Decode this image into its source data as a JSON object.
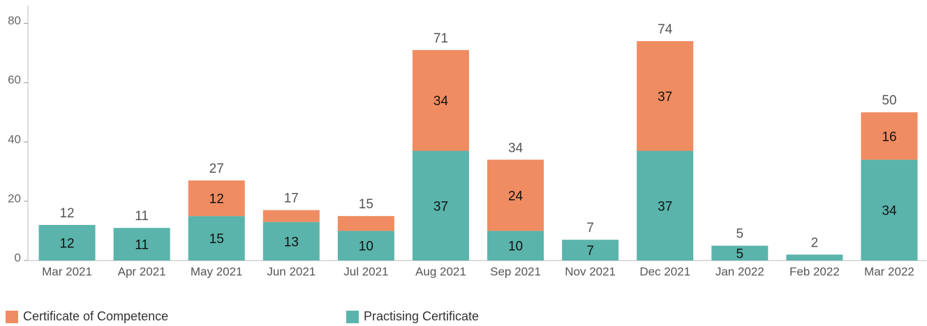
{
  "chart_data": {
    "type": "stacked_bar",
    "categories": [
      "Mar 2021",
      "Apr 2021",
      "May 2021",
      "Jun 2021",
      "Jul 2021",
      "Aug 2021",
      "Sep 2021",
      "Nov 2021",
      "Dec 2021",
      "Jan 2022",
      "Feb 2022",
      "Mar 2022"
    ],
    "series": [
      {
        "name": "Certificate of Competence",
        "color": "#f08c62",
        "values": [
          null,
          null,
          12,
          4,
          5,
          34,
          24,
          null,
          37,
          null,
          null,
          16
        ],
        "value_labels": [
          null,
          null,
          "12",
          null,
          null,
          "34",
          "24",
          null,
          "37",
          null,
          null,
          "16"
        ]
      },
      {
        "name": "Practising Certificate",
        "color": "#5ab4ab",
        "values": [
          12,
          11,
          15,
          13,
          10,
          37,
          10,
          7,
          37,
          5,
          2,
          34
        ],
        "value_labels": [
          "12",
          "11",
          "15",
          "13",
          "10",
          "37",
          "10",
          "7",
          "37",
          "5",
          null,
          "34"
        ]
      }
    ],
    "totals": [
      12,
      11,
      27,
      17,
      15,
      71,
      34,
      7,
      74,
      5,
      2,
      50
    ],
    "ylim": [
      0,
      86
    ],
    "yticks": [
      0,
      20,
      40,
      60,
      80
    ],
    "grid": false,
    "legend": "bottom-left"
  }
}
